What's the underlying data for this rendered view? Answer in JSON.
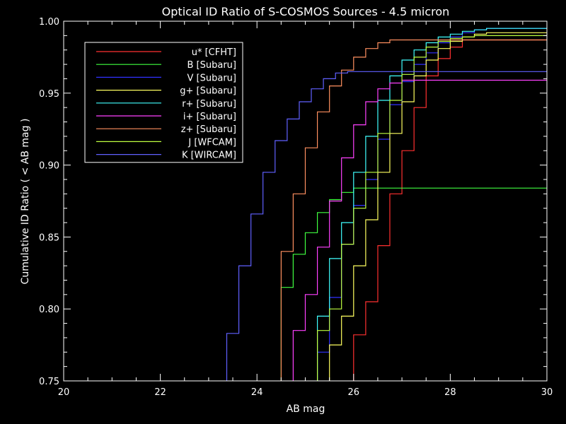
{
  "chart_data": {
    "type": "line",
    "title": "Optical ID Ratio of S-COSMOS Sources - 4.5 micron",
    "xlabel": "AB mag",
    "ylabel": "Cumulative ID Ratio ( < AB mag )",
    "xlim": [
      20,
      30
    ],
    "ylim": [
      0.75,
      1.0
    ],
    "xticks": [
      20,
      22,
      24,
      26,
      28,
      30
    ],
    "xtick_labels": [
      "20",
      "22",
      "24",
      "26",
      "28",
      "30"
    ],
    "yticks": [
      0.75,
      0.8,
      0.85,
      0.9,
      0.95,
      1.0
    ],
    "ytick_labels": [
      "0.75",
      "0.80",
      "0.85",
      "0.90",
      "0.95",
      "1.00"
    ],
    "grid": false,
    "legend_position": "top-left",
    "step": 0.25,
    "series": [
      {
        "name": "u* [CFHT]",
        "color": "#ff3030",
        "x": [
          26.25,
          26.5,
          26.75,
          27.0,
          27.25,
          27.5,
          27.75,
          28.0,
          28.25,
          28.5,
          30.0
        ],
        "y": [
          0.782,
          0.805,
          0.844,
          0.88,
          0.91,
          0.94,
          0.962,
          0.974,
          0.982,
          0.987,
          0.987
        ]
      },
      {
        "name": "B [Subaru]",
        "color": "#40ff40",
        "x": [
          24.75,
          25.0,
          25.25,
          25.5,
          25.75,
          26.0,
          26.25,
          30.0
        ],
        "y": [
          0.815,
          0.838,
          0.853,
          0.867,
          0.876,
          0.881,
          0.884,
          0.884
        ]
      },
      {
        "name": "V [Subaru]",
        "color": "#3030ff",
        "x": [
          25.5,
          25.75,
          26.0,
          26.25,
          26.5,
          26.75,
          27.0,
          27.25,
          27.5,
          27.75,
          28.0,
          28.25,
          28.5,
          28.75,
          29.0,
          30.0
        ],
        "y": [
          0.77,
          0.808,
          0.845,
          0.872,
          0.89,
          0.918,
          0.942,
          0.958,
          0.97,
          0.978,
          0.985,
          0.989,
          0.992,
          0.994,
          0.995,
          0.995
        ]
      },
      {
        "name": "g+ [Subaru]",
        "color": "#ffff60",
        "x": [
          25.75,
          26.0,
          26.25,
          26.5,
          26.75,
          27.0,
          27.25,
          27.5,
          27.75,
          28.0,
          28.25,
          28.5,
          28.75,
          29.0,
          30.0
        ],
        "y": [
          0.775,
          0.795,
          0.83,
          0.862,
          0.895,
          0.922,
          0.944,
          0.962,
          0.973,
          0.981,
          0.986,
          0.989,
          0.991,
          0.992,
          0.992
        ]
      },
      {
        "name": "r+ [Subaru]",
        "color": "#40ffff",
        "x": [
          25.5,
          25.75,
          26.0,
          26.25,
          26.5,
          26.75,
          27.0,
          27.25,
          27.5,
          27.75,
          28.0,
          28.25,
          28.5,
          28.75,
          29.0,
          30.0
        ],
        "y": [
          0.795,
          0.835,
          0.86,
          0.895,
          0.92,
          0.945,
          0.962,
          0.973,
          0.98,
          0.985,
          0.989,
          0.991,
          0.993,
          0.994,
          0.995,
          0.995
        ]
      },
      {
        "name": "i+ [Subaru]",
        "color": "#ff40ff",
        "x": [
          25.0,
          25.25,
          25.5,
          25.75,
          26.0,
          26.25,
          26.5,
          26.75,
          27.0,
          27.25,
          27.5,
          28.0,
          30.0
        ],
        "y": [
          0.785,
          0.81,
          0.843,
          0.875,
          0.905,
          0.928,
          0.944,
          0.953,
          0.957,
          0.959,
          0.959,
          0.959,
          0.959
        ]
      },
      {
        "name": "z+ [Subaru]",
        "color": "#ff9060",
        "x": [
          24.75,
          25.0,
          25.25,
          25.5,
          25.75,
          26.0,
          26.25,
          26.5,
          26.75,
          27.0,
          27.25,
          27.5,
          28.0,
          30.0
        ],
        "y": [
          0.84,
          0.88,
          0.912,
          0.937,
          0.955,
          0.966,
          0.975,
          0.981,
          0.985,
          0.987,
          0.987,
          0.987,
          0.987,
          0.987
        ]
      },
      {
        "name": "J [WFCAM]",
        "color": "#c0ff40",
        "x": [
          25.5,
          25.75,
          26.0,
          26.25,
          26.5,
          26.75,
          27.0,
          27.25,
          27.5,
          27.75,
          28.0,
          28.25,
          28.5,
          28.75,
          30.0
        ],
        "y": [
          0.785,
          0.8,
          0.845,
          0.87,
          0.895,
          0.922,
          0.945,
          0.963,
          0.975,
          0.982,
          0.986,
          0.988,
          0.989,
          0.99,
          0.99
        ]
      },
      {
        "name": "K [WIRCAM]",
        "color": "#6060ff",
        "x": [
          23.625,
          23.875,
          24.125,
          24.375,
          24.625,
          24.875,
          25.125,
          25.375,
          25.625,
          25.875,
          26.125,
          30.0
        ],
        "y": [
          0.783,
          0.83,
          0.866,
          0.895,
          0.917,
          0.932,
          0.944,
          0.953,
          0.96,
          0.964,
          0.965,
          0.965
        ]
      }
    ]
  }
}
